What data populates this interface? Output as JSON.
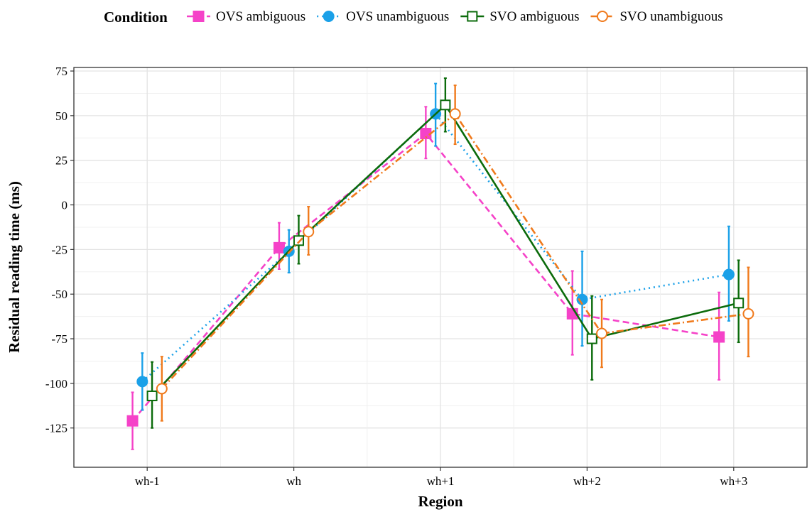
{
  "chart_data": {
    "type": "line",
    "xlabel": "Region",
    "ylabel": "Residual reading time (ms)",
    "categories": [
      "wh-1",
      "wh",
      "wh+1",
      "wh+2",
      "wh+3"
    ],
    "yticks": [
      "75",
      "50",
      "25",
      "0",
      "-25",
      "-50",
      "-75",
      "-100",
      "-125"
    ],
    "ylim": [
      -147,
      77
    ],
    "grid": true,
    "legend": {
      "title": "Condition",
      "position": "top"
    },
    "series": [
      {
        "name": "OVS ambiguous",
        "color": "#f542c8",
        "marker": "square-filled",
        "line": "dashed",
        "values": [
          -121,
          -24,
          40,
          -61,
          -74
        ],
        "error_low": [
          -137,
          -36,
          26,
          -84,
          -98
        ],
        "error_high": [
          -105,
          -10,
          55,
          -37,
          -49
        ]
      },
      {
        "name": "OVS unambiguous",
        "color": "#1aa0e8",
        "marker": "circle-filled",
        "line": "dotted",
        "values": [
          -99,
          -26,
          51,
          -53,
          -39
        ],
        "error_low": [
          -115,
          -38,
          33,
          -79,
          -65
        ],
        "error_high": [
          -83,
          -14,
          68,
          -26,
          -12
        ]
      },
      {
        "name": "SVO ambiguous",
        "color": "#0b6b0b",
        "marker": "square-open",
        "line": "solid",
        "values": [
          -107,
          -20,
          56,
          -75,
          -55
        ],
        "error_low": [
          -125,
          -33,
          41,
          -98,
          -77
        ],
        "error_high": [
          -88,
          -6,
          71,
          -51,
          -31
        ]
      },
      {
        "name": "SVO unambiguous",
        "color": "#f07a1c",
        "marker": "circle-open",
        "line": "dashdot",
        "values": [
          -103,
          -15,
          51,
          -72,
          -61
        ],
        "error_low": [
          -121,
          -28,
          34,
          -91,
          -85
        ],
        "error_high": [
          -85,
          -1,
          67,
          -53,
          -35
        ]
      }
    ]
  }
}
